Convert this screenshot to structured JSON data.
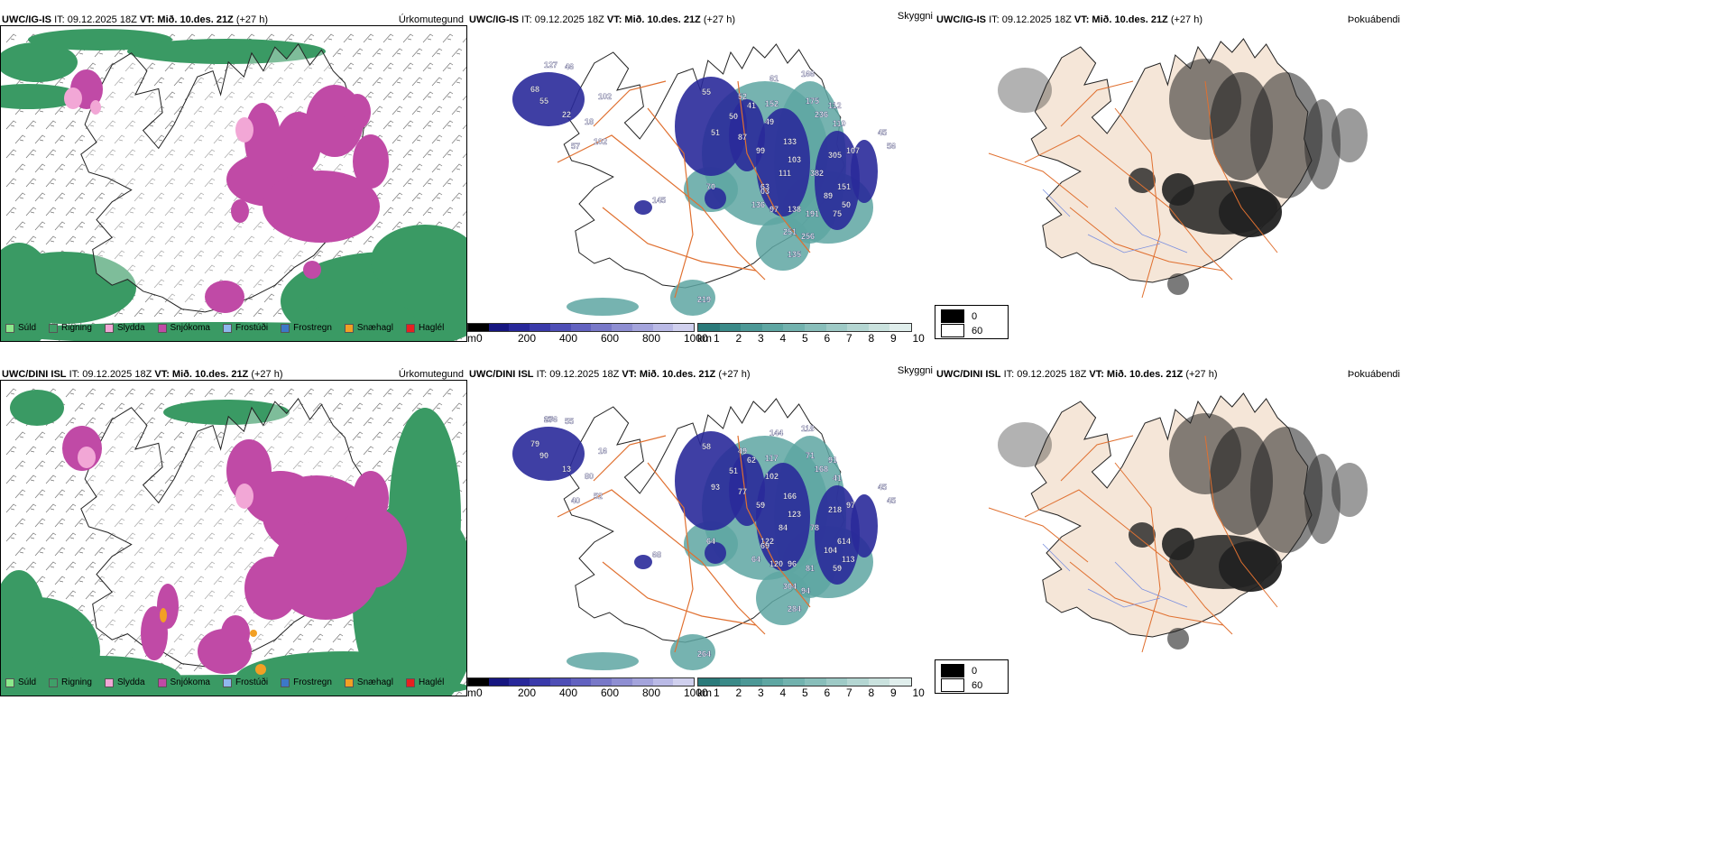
{
  "rows": [
    {
      "model": "UWC/IG-IS",
      "precip": {
        "it": "IT: 09.12.2025 18Z",
        "vt": "VT: Mið. 10.des. 21Z",
        "lead": "(+27 h)",
        "tag": "Úrkomutegund"
      },
      "vis": {
        "it": "IT: 09.12.2025 18Z",
        "vt": "VT: Mið. 10.des. 21Z",
        "lead": "(+27 h)",
        "tag": "Skyggni"
      },
      "fog": {
        "it": "IT: 09.12.2025 18Z",
        "vt": "VT: Mið. 10.des. 21Z",
        "lead": "(+27 h)",
        "tag": "Þokuábendi"
      },
      "ceiling_labels": [
        "127",
        "46",
        "68",
        "102",
        "55",
        "22",
        "18",
        "102",
        "57",
        "55",
        "52",
        "41",
        "50",
        "51",
        "87",
        "99",
        "49",
        "61",
        "152",
        "166",
        "175",
        "236",
        "112",
        "110",
        "133",
        "103",
        "111",
        "382",
        "305",
        "107",
        "45",
        "56",
        "151",
        "63",
        "145",
        "70",
        "03",
        "136",
        "97",
        "138",
        "191",
        "89",
        "75",
        "50",
        "251",
        "256",
        "135",
        "219"
      ]
    },
    {
      "model": "UWC/DINI ISL",
      "precip": {
        "it": "IT: 09.12.2025 18Z",
        "vt": "VT: Mið. 10.des. 21Z",
        "lead": "(+27 h)",
        "tag": "Úrkomutegund"
      },
      "vis": {
        "it": "IT: 09.12.2025 18Z",
        "vt": "VT: Mið. 10.des. 21Z",
        "lead": "(+27 h)",
        "tag": "Skyggni"
      },
      "fog": {
        "it": "IT: 09.12.2025 18Z",
        "vt": "VT: Mið. 10.des. 21Z",
        "lead": "(+27 h)",
        "tag": "Þokuábendi"
      },
      "ceiling_labels": [
        "89",
        "55",
        "79",
        "16",
        "90",
        "13",
        "80",
        "52",
        "40",
        "58",
        "49",
        "62",
        "51",
        "93",
        "77",
        "59",
        "102",
        "144",
        "117",
        "118",
        "71",
        "168",
        "91",
        "41",
        "166",
        "123",
        "84",
        "78",
        "218",
        "97",
        "45",
        "45",
        "614",
        "122",
        "68",
        "64",
        "69",
        "64",
        "120",
        "96",
        "81",
        "104",
        "59",
        "113",
        "304",
        "94",
        "284",
        "264",
        "276"
      ]
    }
  ],
  "legend": [
    {
      "label": "Súld",
      "color": "#8be88b"
    },
    {
      "label": "Rigning",
      "color": "#3f9f68"
    },
    {
      "label": "Slydda",
      "color": "#f2a7d6"
    },
    {
      "label": "Snjókoma",
      "color": "#c04aa6"
    },
    {
      "label": "Frostúði",
      "color": "#8fb8ef"
    },
    {
      "label": "Frostregn",
      "color": "#3c78c8"
    },
    {
      "label": "Snæhagl",
      "color": "#f2a024"
    },
    {
      "label": "Haglél",
      "color": "#e82020"
    }
  ],
  "ceiling_bar": {
    "unit": "m",
    "ticks": [
      "0",
      "200",
      "400",
      "600",
      "800",
      "1000"
    ],
    "colors": [
      "#000000",
      "#161680",
      "#28289a",
      "#3a3aaa",
      "#4e4eb6",
      "#6262c0",
      "#7878c8",
      "#8e8ed2",
      "#a4a4dc",
      "#babae6",
      "#d0d0ee"
    ]
  },
  "vis_bar": {
    "unit": "km",
    "ticks": [
      "1",
      "2",
      "3",
      "4",
      "5",
      "6",
      "7",
      "8",
      "9",
      "10"
    ],
    "colors": [
      "#2a7a7a",
      "#3a8a88",
      "#4c9896",
      "#5ea6a2",
      "#72b2ae",
      "#88beba",
      "#9ecac6",
      "#b4d6d2",
      "#cae2de",
      "#e0eeec"
    ]
  },
  "fog_key": {
    "high": "0",
    "low": "60"
  },
  "colors": {
    "rain": "#3a9a64",
    "snow": "#c04aa6",
    "sleet": "#f2a7d6",
    "ceiling": "#2a2a9a",
    "vis": "#5ea6a2",
    "land": "#f5e6d8",
    "roads": "#e07030",
    "hills": "#606060"
  }
}
